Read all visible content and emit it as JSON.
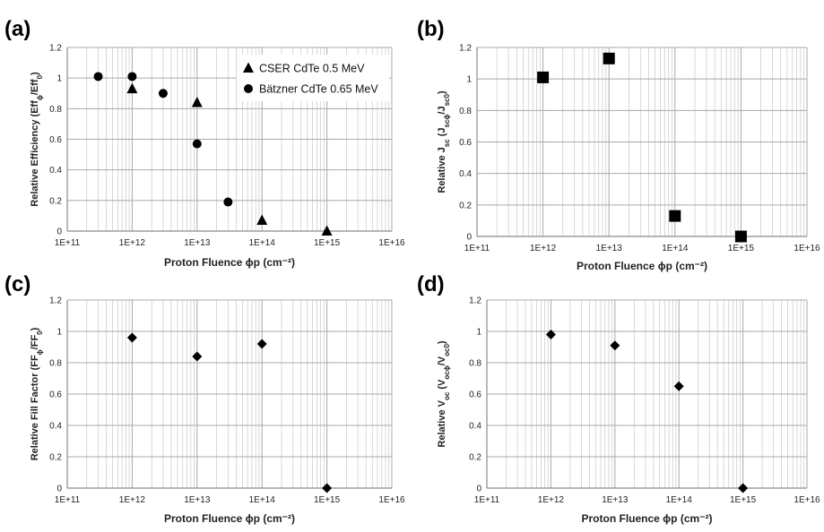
{
  "chart_data": [
    {
      "type": "scatter",
      "panel_label": "(a)",
      "xlabel": "Proton Fluence ϕp (cm⁻²)",
      "ylabel_main": "Relative Efficiency (Eff",
      "ylabel_sub1": "ϕ",
      "ylabel_mid": "/Eff",
      "ylabel_sub2": "0",
      "ylabel_end": ")",
      "x_scale": "log",
      "xlim": [
        100000000000.0,
        1e+16
      ],
      "ylim": [
        0,
        1.2
      ],
      "x_tick_labels": [
        "1E+11",
        "1E+12",
        "1E+13",
        "1E+14",
        "1E+15",
        "1E+16"
      ],
      "y_tick_labels": [
        "0",
        "0.2",
        "0.4",
        "0.6",
        "0.8",
        "1",
        "1.2"
      ],
      "grid": true,
      "legend_position": "top-right",
      "series": [
        {
          "name": "CSER CdTe 0.5 MeV",
          "marker": "triangle",
          "points": [
            [
              1000000000000.0,
              0.93
            ],
            [
              10000000000000.0,
              0.84
            ],
            [
              100000000000000.0,
              0.07
            ],
            [
              1000000000000000.0,
              0.0
            ]
          ]
        },
        {
          "name": "Bätzner CdTe 0.65 MeV",
          "marker": "circle",
          "points": [
            [
              300000000000.0,
              1.01
            ],
            [
              1000000000000.0,
              1.01
            ],
            [
              3000000000000.0,
              0.9
            ],
            [
              10000000000000.0,
              0.57
            ],
            [
              30000000000000.0,
              0.19
            ]
          ]
        }
      ]
    },
    {
      "type": "scatter",
      "panel_label": "(b)",
      "xlabel": "Proton Fluence ϕp (cm⁻²)",
      "ylabel_main": "Relative J",
      "ylabel_sub0": "sc",
      "ylabel_mid0": " (J",
      "ylabel_sub1": "scϕ",
      "ylabel_mid": "/J",
      "ylabel_sub2": "sc0",
      "ylabel_end": ")",
      "x_scale": "log",
      "xlim": [
        100000000000.0,
        1e+16
      ],
      "ylim": [
        0,
        1.2
      ],
      "x_tick_labels": [
        "1E+11",
        "1E+12",
        "1E+13",
        "1E+14",
        "1E+15",
        "1E+16"
      ],
      "y_tick_labels": [
        "0",
        "0.2",
        "0.4",
        "0.6",
        "0.8",
        "1",
        "1.2"
      ],
      "grid": true,
      "series": [
        {
          "marker": "square",
          "points": [
            [
              1000000000000.0,
              1.01
            ],
            [
              10000000000000.0,
              1.13
            ],
            [
              100000000000000.0,
              0.13
            ],
            [
              1000000000000000.0,
              0.0
            ]
          ]
        }
      ]
    },
    {
      "type": "scatter",
      "panel_label": "(c)",
      "xlabel": "Proton Fluence ϕp (cm⁻²)",
      "ylabel_main": "Relative Fill Factor (FF",
      "ylabel_sub1": "ϕ",
      "ylabel_mid": "/FF",
      "ylabel_sub2": "0",
      "ylabel_end": ")",
      "x_scale": "log",
      "xlim": [
        100000000000.0,
        1e+16
      ],
      "ylim": [
        0,
        1.2
      ],
      "x_tick_labels": [
        "1E+11",
        "1E+12",
        "1E+13",
        "1E+14",
        "1E+15",
        "1E+16"
      ],
      "y_tick_labels": [
        "0",
        "0.2",
        "0.4",
        "0.6",
        "0.8",
        "1",
        "1.2"
      ],
      "grid": true,
      "series": [
        {
          "marker": "diamond",
          "points": [
            [
              1000000000000.0,
              0.96
            ],
            [
              10000000000000.0,
              0.84
            ],
            [
              100000000000000.0,
              0.92
            ],
            [
              1000000000000000.0,
              0.0
            ]
          ]
        }
      ]
    },
    {
      "type": "scatter",
      "panel_label": "(d)",
      "xlabel": "Proton Fluence ϕp (cm⁻²)",
      "ylabel_main": "Relative V",
      "ylabel_sub0": "oc",
      "ylabel_mid0": " (V",
      "ylabel_sub1": "ocϕ",
      "ylabel_mid": "/V",
      "ylabel_sub2": "oc0",
      "ylabel_end": ")",
      "x_scale": "log",
      "xlim": [
        100000000000.0,
        1e+16
      ],
      "ylim": [
        0,
        1.2
      ],
      "x_tick_labels": [
        "1E+11",
        "1E+12",
        "1E+13",
        "1E+14",
        "1E+15",
        "1E+16"
      ],
      "y_tick_labels": [
        "0",
        "0.2",
        "0.4",
        "0.6",
        "0.8",
        "1",
        "1.2"
      ],
      "grid": true,
      "series": [
        {
          "marker": "diamond",
          "points": [
            [
              1000000000000.0,
              0.98
            ],
            [
              10000000000000.0,
              0.91
            ],
            [
              100000000000000.0,
              0.65
            ],
            [
              1000000000000000.0,
              0.0
            ]
          ]
        }
      ]
    }
  ],
  "colors": {
    "marker": "#000000",
    "grid": "#c8c8c8",
    "axis": "#8c8c8c"
  }
}
